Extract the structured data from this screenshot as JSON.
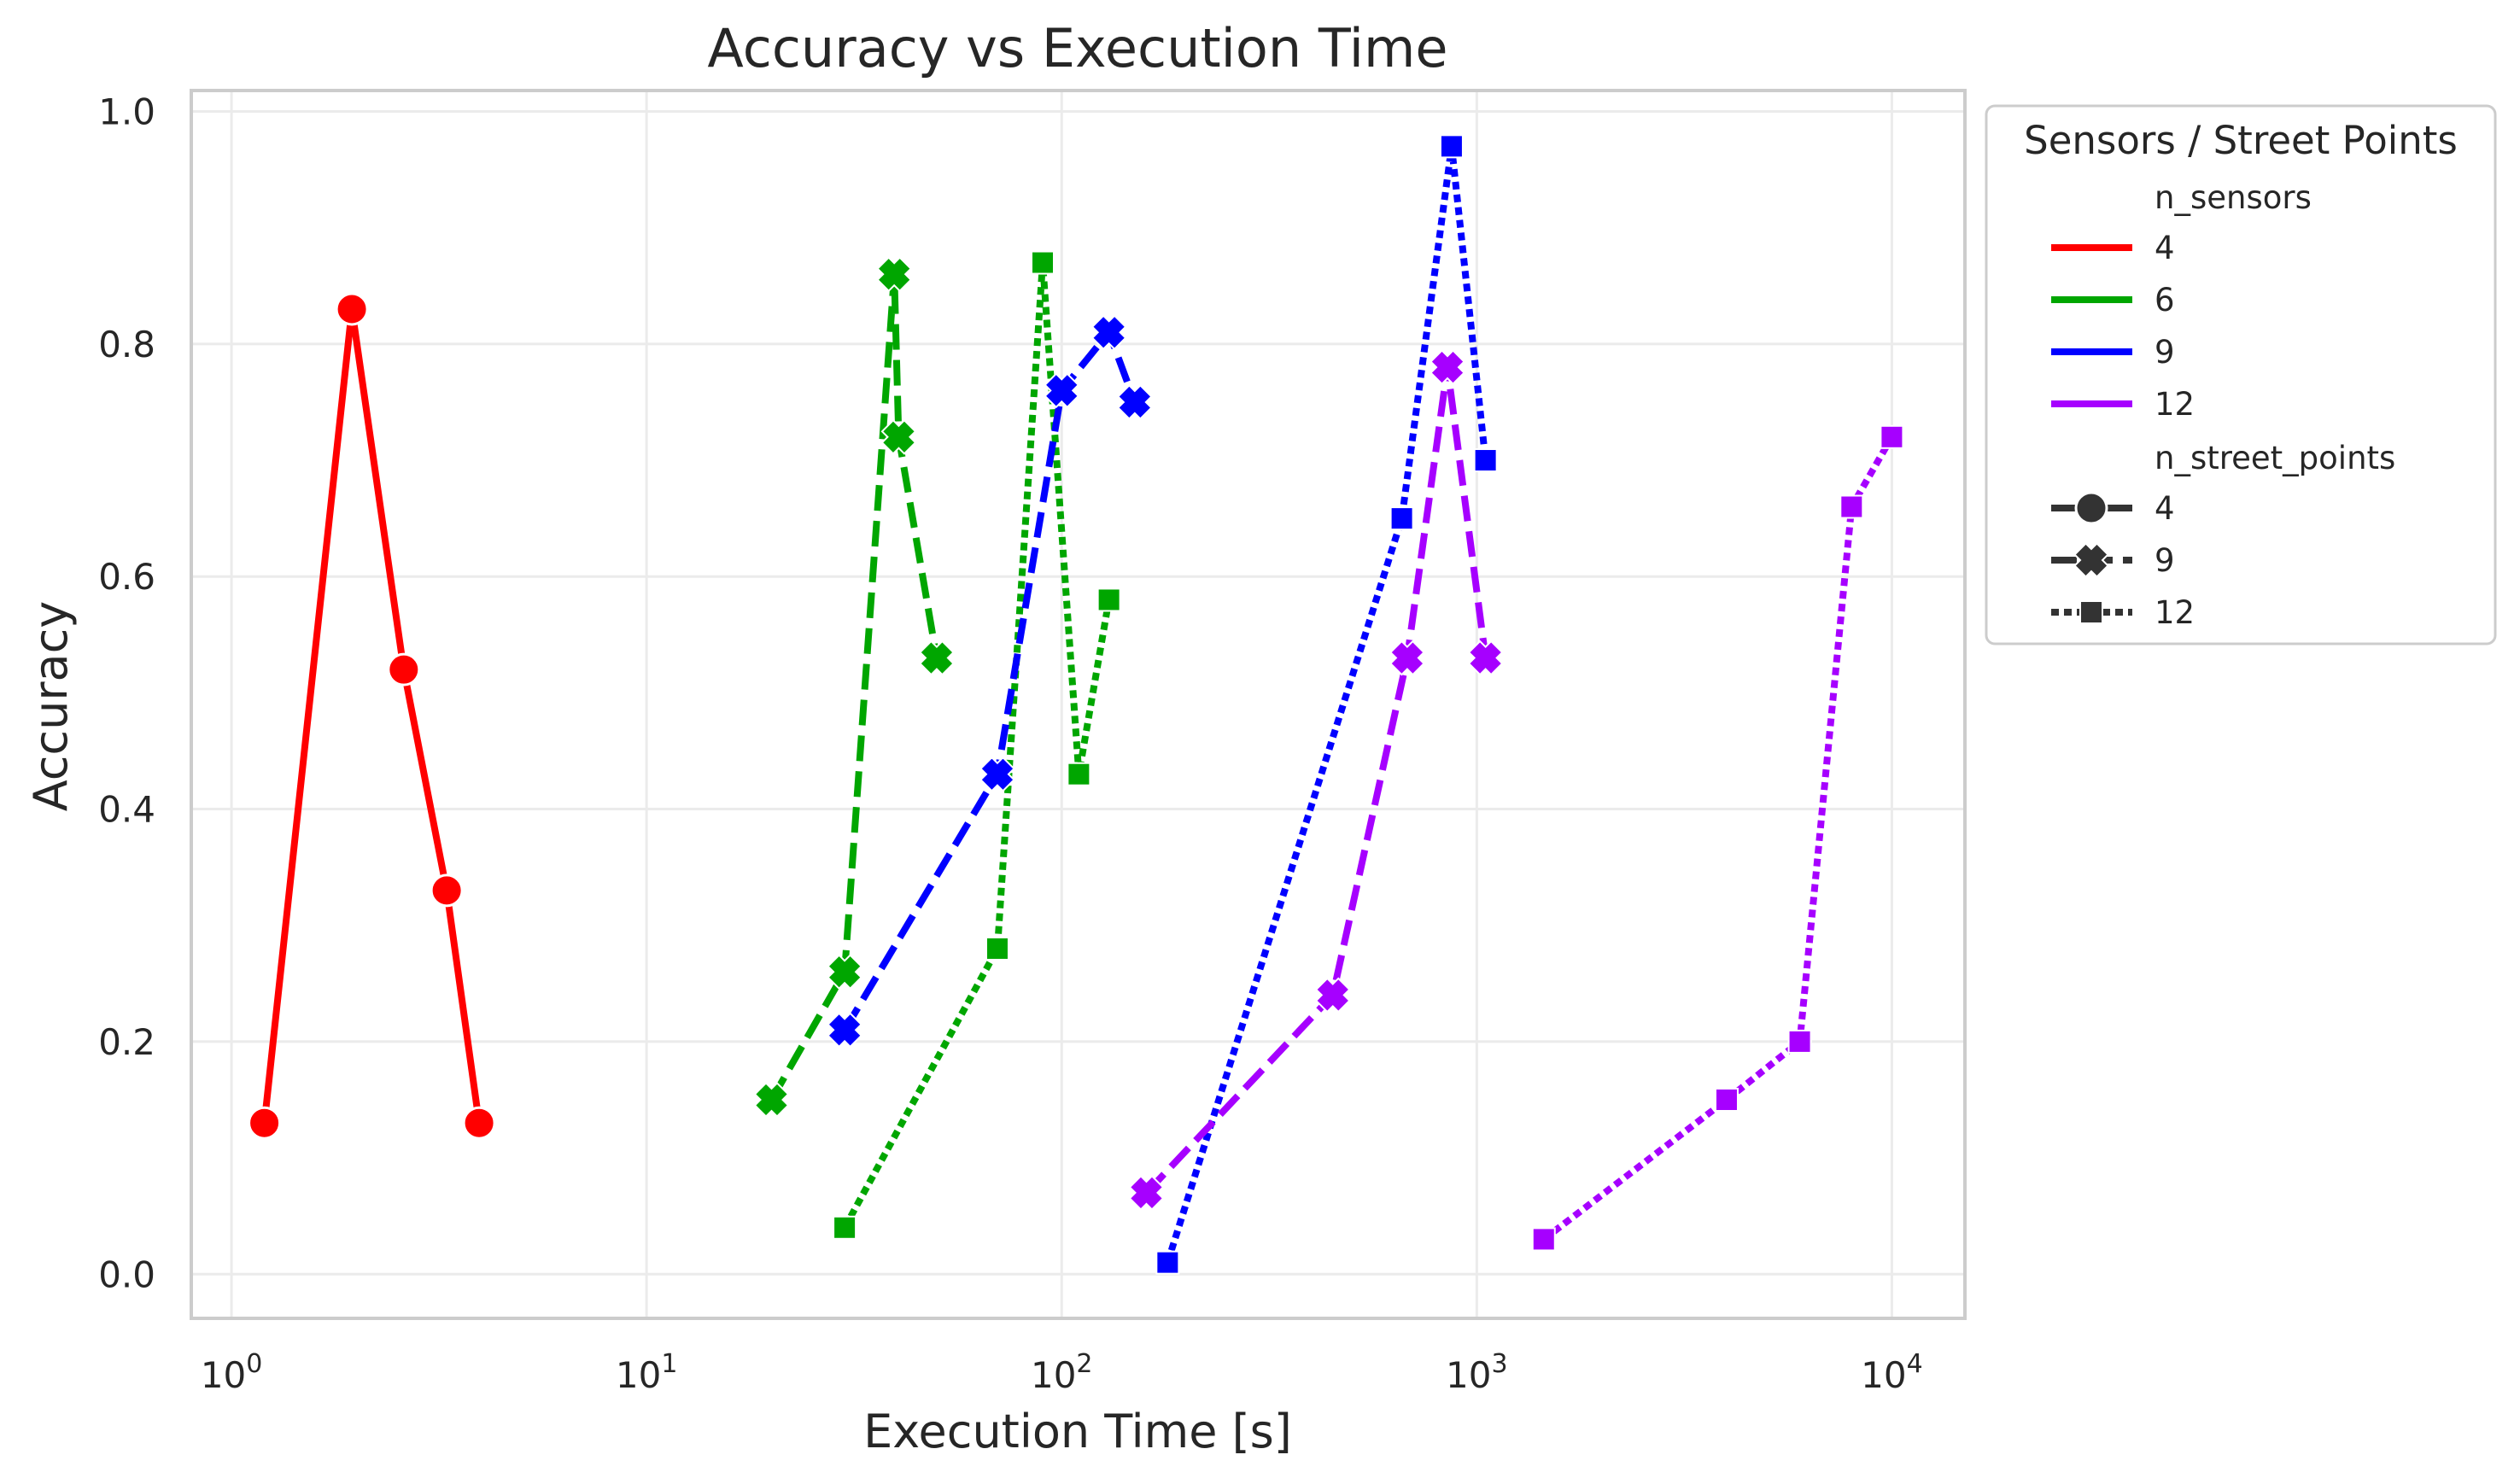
{
  "chart_data": {
    "type": "line",
    "title": "Accuracy vs Execution Time",
    "xlabel": "Execution Time [s]",
    "ylabel": "Accuracy",
    "x_scale": "log",
    "xlim": [
      0.8,
      15000
    ],
    "ylim": [
      -0.038,
      1.018
    ],
    "x_ticks": [
      {
        "value": 1,
        "base": "10",
        "exp": "0"
      },
      {
        "value": 10,
        "base": "10",
        "exp": "1"
      },
      {
        "value": 100,
        "base": "10",
        "exp": "2"
      },
      {
        "value": 1000,
        "base": "10",
        "exp": "3"
      },
      {
        "value": 10000,
        "base": "10",
        "exp": "4"
      }
    ],
    "y_ticks": [
      0.0,
      0.2,
      0.4,
      0.6,
      0.8,
      1.0
    ],
    "y_tick_labels": [
      "0.0",
      "0.2",
      "0.4",
      "0.6",
      "0.8",
      "1.0"
    ],
    "grid": true,
    "colors": {
      "4": "#ff0000",
      "6": "#00a600",
      "9": "#0000ff",
      "12": "#a600ff"
    },
    "legend": {
      "title": "Sensors / Street Points",
      "placement": "outside-upper-right",
      "hue_title": "n_sensors",
      "hue_entries": [
        {
          "label": "4",
          "color": "#ff0000"
        },
        {
          "label": "6",
          "color": "#00a600"
        },
        {
          "label": "9",
          "color": "#0000ff"
        },
        {
          "label": "12",
          "color": "#a600ff"
        }
      ],
      "style_title": "n_street_points",
      "style_entries": [
        {
          "label": "4",
          "dash": "solid",
          "marker": "circle"
        },
        {
          "label": "9",
          "dash": "dashed",
          "marker": "x"
        },
        {
          "label": "12",
          "dash": "dotted",
          "marker": "square"
        }
      ]
    },
    "series": [
      {
        "n_sensors": "4",
        "n_street_points": "4",
        "color": "#ff0000",
        "dash": "solid",
        "marker": "circle",
        "x": [
          1.2,
          1.95,
          2.6,
          3.3,
          3.95
        ],
        "y": [
          0.13,
          0.83,
          0.52,
          0.33,
          0.13
        ]
      },
      {
        "n_sensors": "6",
        "n_street_points": "9",
        "color": "#00a600",
        "dash": "dashed",
        "marker": "x",
        "x": [
          20,
          30,
          39.5,
          40.5,
          50
        ],
        "y": [
          0.15,
          0.26,
          0.86,
          0.72,
          0.53
        ]
      },
      {
        "n_sensors": "6",
        "n_street_points": "12",
        "color": "#00a600",
        "dash": "dotted",
        "marker": "square",
        "x": [
          30,
          70,
          90,
          110,
          130
        ],
        "y": [
          0.04,
          0.28,
          0.87,
          0.43,
          0.58
        ]
      },
      {
        "n_sensors": "9",
        "n_street_points": "9",
        "color": "#0000ff",
        "dash": "dashed",
        "marker": "x",
        "x": [
          30,
          70,
          100,
          130,
          150
        ],
        "y": [
          0.21,
          0.43,
          0.76,
          0.81,
          0.75
        ]
      },
      {
        "n_sensors": "9",
        "n_street_points": "12",
        "color": "#0000ff",
        "dash": "dotted",
        "marker": "square",
        "x": [
          180,
          660,
          870,
          1050
        ],
        "y": [
          0.01,
          0.65,
          0.97,
          0.7
        ]
      },
      {
        "n_sensors": "12",
        "n_street_points": "9",
        "color": "#a600ff",
        "dash": "dashed",
        "marker": "x",
        "x": [
          160,
          450,
          680,
          850,
          1050
        ],
        "y": [
          0.07,
          0.24,
          0.53,
          0.78,
          0.53
        ]
      },
      {
        "n_sensors": "12",
        "n_street_points": "12",
        "color": "#a600ff",
        "dash": "dotted",
        "marker": "square",
        "x": [
          1450,
          4000,
          6000,
          8000,
          10000
        ],
        "y": [
          0.03,
          0.15,
          0.2,
          0.66,
          0.72
        ]
      }
    ]
  }
}
